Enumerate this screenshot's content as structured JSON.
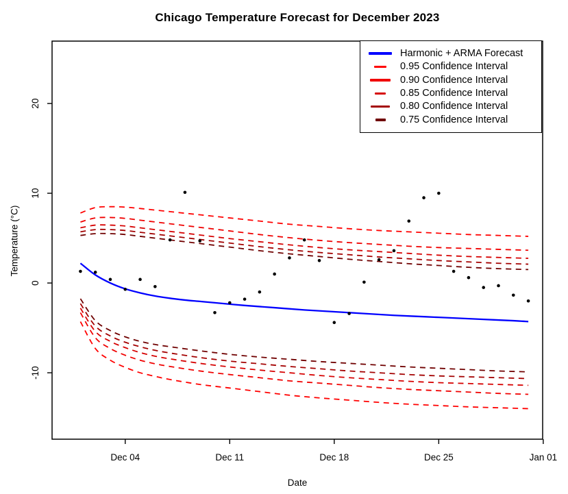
{
  "title": "Chicago Temperature Forecast for December 2023",
  "chart_data": {
    "type": "line",
    "title": "Chicago Temperature Forecast for December 2023",
    "xlabel": "Date",
    "ylabel": "Temperature (°C)",
    "x_unit": "day of December 2023 (32 = Jan 01)",
    "grid": false,
    "legend_position": "topright",
    "xlim_days": [
      -0.9,
      31.96
    ],
    "ylim": [
      -17.4,
      26.95
    ],
    "x_ticks": [
      {
        "day": 4,
        "label": "Dec 04"
      },
      {
        "day": 11,
        "label": "Dec 11"
      },
      {
        "day": 18,
        "label": "Dec 18"
      },
      {
        "day": 25,
        "label": "Dec 25"
      },
      {
        "day": 32,
        "label": "Jan 01"
      }
    ],
    "y_ticks": [
      {
        "value": -10,
        "label": "-10"
      },
      {
        "value": 0,
        "label": "0"
      },
      {
        "value": 10,
        "label": "10"
      },
      {
        "value": 20,
        "label": "20"
      }
    ],
    "forecast": {
      "name": "Harmonic + ARMA Forecast",
      "color": "#0000FF",
      "style": "solid",
      "points": [
        [
          1,
          2.2
        ],
        [
          2,
          0.9
        ],
        [
          3,
          0.0
        ],
        [
          4,
          -0.65
        ],
        [
          5,
          -1.1
        ],
        [
          6,
          -1.45
        ],
        [
          7,
          -1.7
        ],
        [
          8,
          -1.9
        ],
        [
          9,
          -2.05
        ],
        [
          10,
          -2.2
        ],
        [
          12,
          -2.5
        ],
        [
          14,
          -2.75
        ],
        [
          16,
          -3.0
        ],
        [
          18,
          -3.2
        ],
        [
          20,
          -3.4
        ],
        [
          22,
          -3.6
        ],
        [
          24,
          -3.75
        ],
        [
          26,
          -3.9
        ],
        [
          28,
          -4.05
        ],
        [
          30,
          -4.2
        ],
        [
          31,
          -4.3
        ]
      ]
    },
    "ci_bands": [
      {
        "level": "0.95",
        "color": "#FF0000",
        "upper": [
          [
            1,
            7.8
          ],
          [
            2,
            8.4
          ],
          [
            3,
            8.5
          ],
          [
            4,
            8.45
          ],
          [
            5,
            8.3
          ],
          [
            7,
            7.95
          ],
          [
            9,
            7.6
          ],
          [
            11,
            7.25
          ],
          [
            13,
            6.9
          ],
          [
            15,
            6.55
          ],
          [
            17,
            6.3
          ],
          [
            19,
            6.05
          ],
          [
            21,
            5.85
          ],
          [
            23,
            5.7
          ],
          [
            25,
            5.55
          ],
          [
            27,
            5.4
          ],
          [
            29,
            5.3
          ],
          [
            31,
            5.2
          ]
        ],
        "lower": [
          [
            1,
            -4.3
          ],
          [
            2,
            -7.3
          ],
          [
            3,
            -8.6
          ],
          [
            4,
            -9.4
          ],
          [
            5,
            -10.0
          ],
          [
            6,
            -10.4
          ],
          [
            7,
            -10.75
          ],
          [
            9,
            -11.3
          ],
          [
            11,
            -11.7
          ],
          [
            13,
            -12.1
          ],
          [
            15,
            -12.5
          ],
          [
            17,
            -12.8
          ],
          [
            19,
            -13.05
          ],
          [
            21,
            -13.3
          ],
          [
            23,
            -13.5
          ],
          [
            25,
            -13.65
          ],
          [
            27,
            -13.8
          ],
          [
            29,
            -13.9
          ],
          [
            31,
            -14.0
          ]
        ]
      },
      {
        "level": "0.90",
        "color": "#F00000",
        "upper": [
          [
            1,
            6.8
          ],
          [
            2,
            7.25
          ],
          [
            3,
            7.3
          ],
          [
            4,
            7.2
          ],
          [
            5,
            7.0
          ],
          [
            7,
            6.6
          ],
          [
            9,
            6.2
          ],
          [
            11,
            5.8
          ],
          [
            13,
            5.4
          ],
          [
            15,
            5.05
          ],
          [
            17,
            4.75
          ],
          [
            19,
            4.5
          ],
          [
            21,
            4.3
          ],
          [
            23,
            4.1
          ],
          [
            25,
            3.95
          ],
          [
            27,
            3.85
          ],
          [
            29,
            3.75
          ],
          [
            31,
            3.65
          ]
        ],
        "lower": [
          [
            1,
            -3.3
          ],
          [
            2,
            -6.1
          ],
          [
            3,
            -7.3
          ],
          [
            4,
            -8.05
          ],
          [
            5,
            -8.6
          ],
          [
            6,
            -9.0
          ],
          [
            7,
            -9.3
          ],
          [
            9,
            -9.8
          ],
          [
            11,
            -10.2
          ],
          [
            13,
            -10.55
          ],
          [
            15,
            -10.9
          ],
          [
            17,
            -11.15
          ],
          [
            19,
            -11.4
          ],
          [
            21,
            -11.65
          ],
          [
            23,
            -11.85
          ],
          [
            25,
            -12.0
          ],
          [
            27,
            -12.15
          ],
          [
            29,
            -12.3
          ],
          [
            31,
            -12.4
          ]
        ]
      },
      {
        "level": "0.85",
        "color": "#D60000",
        "upper": [
          [
            1,
            6.15
          ],
          [
            2,
            6.45
          ],
          [
            3,
            6.45
          ],
          [
            4,
            6.35
          ],
          [
            5,
            6.15
          ],
          [
            7,
            5.75
          ],
          [
            9,
            5.35
          ],
          [
            11,
            4.95
          ],
          [
            13,
            4.6
          ],
          [
            15,
            4.25
          ],
          [
            17,
            3.95
          ],
          [
            19,
            3.7
          ],
          [
            21,
            3.5
          ],
          [
            23,
            3.3
          ],
          [
            25,
            3.1
          ],
          [
            27,
            2.95
          ],
          [
            29,
            2.85
          ],
          [
            31,
            2.75
          ]
        ],
        "lower": [
          [
            1,
            -2.8
          ],
          [
            2,
            -5.4
          ],
          [
            3,
            -6.5
          ],
          [
            4,
            -7.2
          ],
          [
            5,
            -7.75
          ],
          [
            6,
            -8.15
          ],
          [
            7,
            -8.45
          ],
          [
            9,
            -8.95
          ],
          [
            11,
            -9.35
          ],
          [
            13,
            -9.7
          ],
          [
            15,
            -10.0
          ],
          [
            17,
            -10.3
          ],
          [
            19,
            -10.55
          ],
          [
            21,
            -10.75
          ],
          [
            23,
            -10.95
          ],
          [
            25,
            -11.1
          ],
          [
            27,
            -11.2
          ],
          [
            29,
            -11.3
          ],
          [
            31,
            -11.4
          ]
        ]
      },
      {
        "level": "0.80",
        "color": "#A30000",
        "upper": [
          [
            1,
            5.7
          ],
          [
            2,
            5.95
          ],
          [
            3,
            5.95
          ],
          [
            4,
            5.85
          ],
          [
            5,
            5.65
          ],
          [
            7,
            5.25
          ],
          [
            9,
            4.85
          ],
          [
            11,
            4.45
          ],
          [
            13,
            4.05
          ],
          [
            15,
            3.7
          ],
          [
            17,
            3.4
          ],
          [
            19,
            3.15
          ],
          [
            21,
            2.9
          ],
          [
            23,
            2.7
          ],
          [
            25,
            2.5
          ],
          [
            27,
            2.35
          ],
          [
            29,
            2.2
          ],
          [
            31,
            2.1
          ]
        ],
        "lower": [
          [
            1,
            -2.3
          ],
          [
            2,
            -4.8
          ],
          [
            3,
            -5.9
          ],
          [
            4,
            -6.6
          ],
          [
            5,
            -7.1
          ],
          [
            6,
            -7.5
          ],
          [
            7,
            -7.8
          ],
          [
            9,
            -8.3
          ],
          [
            11,
            -8.7
          ],
          [
            13,
            -9.0
          ],
          [
            15,
            -9.3
          ],
          [
            17,
            -9.55
          ],
          [
            19,
            -9.8
          ],
          [
            21,
            -10.0
          ],
          [
            23,
            -10.2
          ],
          [
            25,
            -10.35
          ],
          [
            27,
            -10.45
          ],
          [
            29,
            -10.55
          ],
          [
            31,
            -10.65
          ]
        ]
      },
      {
        "level": "0.75",
        "color": "#6F0000",
        "upper": [
          [
            1,
            5.3
          ],
          [
            2,
            5.5
          ],
          [
            3,
            5.5
          ],
          [
            4,
            5.4
          ],
          [
            5,
            5.2
          ],
          [
            7,
            4.8
          ],
          [
            9,
            4.4
          ],
          [
            11,
            4.0
          ],
          [
            13,
            3.6
          ],
          [
            15,
            3.25
          ],
          [
            17,
            2.95
          ],
          [
            19,
            2.65
          ],
          [
            21,
            2.4
          ],
          [
            23,
            2.15
          ],
          [
            25,
            1.95
          ],
          [
            27,
            1.75
          ],
          [
            29,
            1.6
          ],
          [
            31,
            1.5
          ]
        ],
        "lower": [
          [
            1,
            -1.75
          ],
          [
            2,
            -4.2
          ],
          [
            3,
            -5.3
          ],
          [
            4,
            -6.0
          ],
          [
            5,
            -6.5
          ],
          [
            6,
            -6.85
          ],
          [
            7,
            -7.1
          ],
          [
            9,
            -7.55
          ],
          [
            11,
            -7.95
          ],
          [
            13,
            -8.25
          ],
          [
            15,
            -8.5
          ],
          [
            17,
            -8.75
          ],
          [
            19,
            -8.95
          ],
          [
            21,
            -9.15
          ],
          [
            23,
            -9.35
          ],
          [
            25,
            -9.5
          ],
          [
            27,
            -9.65
          ],
          [
            29,
            -9.8
          ],
          [
            31,
            -9.9
          ]
        ]
      }
    ],
    "observed_points": [
      [
        1,
        1.3
      ],
      [
        2,
        1.2
      ],
      [
        3,
        0.4
      ],
      [
        4,
        -0.7
      ],
      [
        5,
        0.4
      ],
      [
        6,
        -0.4
      ],
      [
        7,
        4.8
      ],
      [
        8,
        10.1
      ],
      [
        9,
        4.7
      ],
      [
        10,
        -3.3
      ],
      [
        11,
        -2.2
      ],
      [
        12,
        -1.8
      ],
      [
        13,
        -1.0
      ],
      [
        14,
        1.0
      ],
      [
        15,
        2.8
      ],
      [
        16,
        4.8
      ],
      [
        17,
        2.5
      ],
      [
        18,
        -4.4
      ],
      [
        19,
        -3.4
      ],
      [
        20,
        0.1
      ],
      [
        21,
        2.6
      ],
      [
        22,
        3.6
      ],
      [
        23,
        6.9
      ],
      [
        24,
        9.5
      ],
      [
        25,
        10.0
      ],
      [
        26,
        1.3
      ],
      [
        27,
        0.6
      ],
      [
        28,
        -0.5
      ],
      [
        29,
        -0.3
      ],
      [
        30,
        -1.35
      ],
      [
        31,
        -2.0
      ]
    ],
    "point_color": "#000000",
    "legend": [
      {
        "label": "Harmonic + ARMA Forecast",
        "color": "#0000FF",
        "line_style": "solid",
        "key_len": 34
      },
      {
        "label": "0.95 Confidence Interval",
        "color": "#FF0000",
        "line_style": "dashed",
        "key_len": 18
      },
      {
        "label": "0.90 Confidence Interval",
        "color": "#F00000",
        "line_style": "dashed",
        "key_len": 30
      },
      {
        "label": "0.85 Confidence Interval",
        "color": "#D60000",
        "line_style": "dashed",
        "key_len": 16
      },
      {
        "label": "0.80 Confidence Interval",
        "color": "#A30000",
        "line_style": "dashed",
        "key_len": 28
      },
      {
        "label": "0.75 Confidence Interval",
        "color": "#6F0000",
        "line_style": "dashed",
        "key_len": 15
      }
    ]
  }
}
